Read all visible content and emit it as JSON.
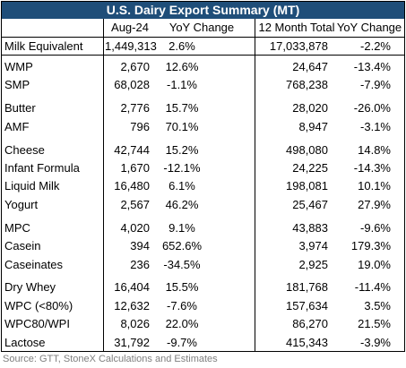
{
  "table": {
    "title": "U.S. Dairy Export Summary (MT)",
    "header": [
      "Aug-24",
      "YoY Change",
      "12 Month Total",
      "YoY Change"
    ],
    "lead_row": [
      "Milk Equivalent",
      "1,449,313",
      "2.6%",
      "17,033,878",
      "-2.2%"
    ],
    "groups": [
      [
        [
          "WMP",
          "2,670",
          "12.6%",
          "24,647",
          "-13.4%"
        ],
        [
          "SMP",
          "68,028",
          "-1.1%",
          "768,238",
          "-7.9%"
        ]
      ],
      [
        [
          "Butter",
          "2,776",
          "15.7%",
          "28,020",
          "-26.0%"
        ],
        [
          "AMF",
          "796",
          "70.1%",
          "8,947",
          "-3.1%"
        ]
      ],
      [
        [
          "Cheese",
          "42,744",
          "15.2%",
          "498,080",
          "14.8%"
        ],
        [
          "Infant Formula",
          "1,670",
          "-12.1%",
          "24,225",
          "-14.3%"
        ],
        [
          "Liquid Milk",
          "16,480",
          "6.1%",
          "198,081",
          "10.1%"
        ],
        [
          "Yogurt",
          "2,567",
          "46.2%",
          "25,467",
          "27.9%"
        ]
      ],
      [
        [
          "MPC",
          "4,020",
          "9.1%",
          "43,883",
          "-9.6%"
        ],
        [
          "Casein",
          "394",
          "652.6%",
          "3,974",
          "179.3%"
        ],
        [
          "Caseinates",
          "236",
          "-34.5%",
          "2,925",
          "19.0%"
        ]
      ],
      [
        [
          "Dry Whey",
          "16,404",
          "15.5%",
          "181,768",
          "-11.4%"
        ],
        [
          "WPC (<80%)",
          "12,632",
          "-7.6%",
          "157,634",
          "3.5%"
        ],
        [
          "WPC80/WPI",
          "8,026",
          "22.0%",
          "86,270",
          "21.5%"
        ],
        [
          "Lactose",
          "31,792",
          "-9.7%",
          "415,343",
          "-3.9%"
        ]
      ]
    ],
    "source": "Source: GTT, StoneX Calculations and Estimates"
  }
}
